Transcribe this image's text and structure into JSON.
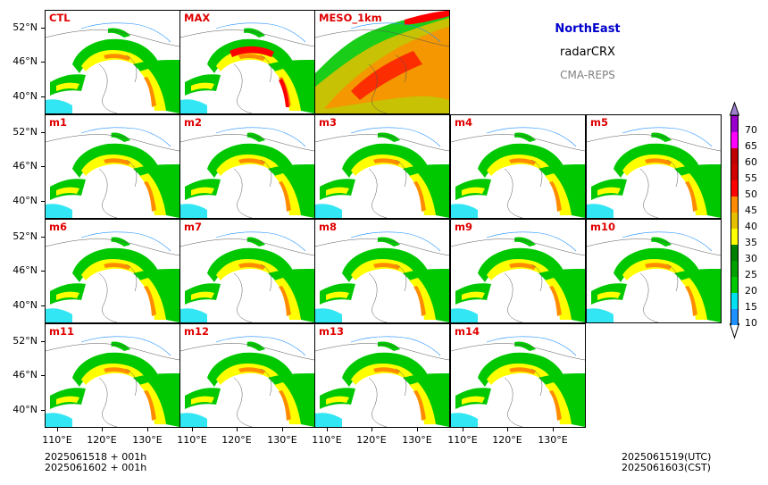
{
  "header": {
    "region": "NorthEast",
    "variable": "radarCRX",
    "model": "CMA-REPS"
  },
  "axes": {
    "lat_labels": [
      "52°N",
      "46°N",
      "40°N"
    ],
    "lon_labels": [
      "110°E",
      "120°E",
      "130°E"
    ]
  },
  "panels": [
    {
      "label": "CTL",
      "row": 0,
      "col": 0,
      "style": "member"
    },
    {
      "label": "MAX",
      "row": 0,
      "col": 1,
      "style": "max"
    },
    {
      "label": "MESO_1km",
      "row": 0,
      "col": 2,
      "style": "meso"
    },
    {
      "label": "m1",
      "row": 1,
      "col": 0,
      "style": "member"
    },
    {
      "label": "m2",
      "row": 1,
      "col": 1,
      "style": "member"
    },
    {
      "label": "m3",
      "row": 1,
      "col": 2,
      "style": "member"
    },
    {
      "label": "m4",
      "row": 1,
      "col": 3,
      "style": "member"
    },
    {
      "label": "m5",
      "row": 1,
      "col": 4,
      "style": "member"
    },
    {
      "label": "m6",
      "row": 2,
      "col": 0,
      "style": "member"
    },
    {
      "label": "m7",
      "row": 2,
      "col": 1,
      "style": "member"
    },
    {
      "label": "m8",
      "row": 2,
      "col": 2,
      "style": "member"
    },
    {
      "label": "m9",
      "row": 2,
      "col": 3,
      "style": "member"
    },
    {
      "label": "m10",
      "row": 2,
      "col": 4,
      "style": "member"
    },
    {
      "label": "m11",
      "row": 3,
      "col": 0,
      "style": "member"
    },
    {
      "label": "m12",
      "row": 3,
      "col": 1,
      "style": "member"
    },
    {
      "label": "m13",
      "row": 3,
      "col": 2,
      "style": "member"
    },
    {
      "label": "m14",
      "row": 3,
      "col": 3,
      "style": "member"
    }
  ],
  "colorbar": {
    "levels": [
      "10",
      "15",
      "20",
      "25",
      "30",
      "35",
      "40",
      "45",
      "50",
      "55",
      "60",
      "65",
      "70"
    ],
    "colors": [
      "#1e90ff",
      "#00e0f0",
      "#00c800",
      "#00a000",
      "#008000",
      "#ffff00",
      "#e6c000",
      "#ff8c00",
      "#ff0000",
      "#d00000",
      "#c00000",
      "#ff00ff",
      "#9900cc"
    ],
    "over_color": "#a080d0",
    "under_color": "#ffffff"
  },
  "footer": {
    "init_utc": "2025061518  +  001h",
    "init_cst": "2025061602  +  001h",
    "valid_utc": "2025061519(UTC)",
    "valid_cst": "2025061603(CST)"
  }
}
